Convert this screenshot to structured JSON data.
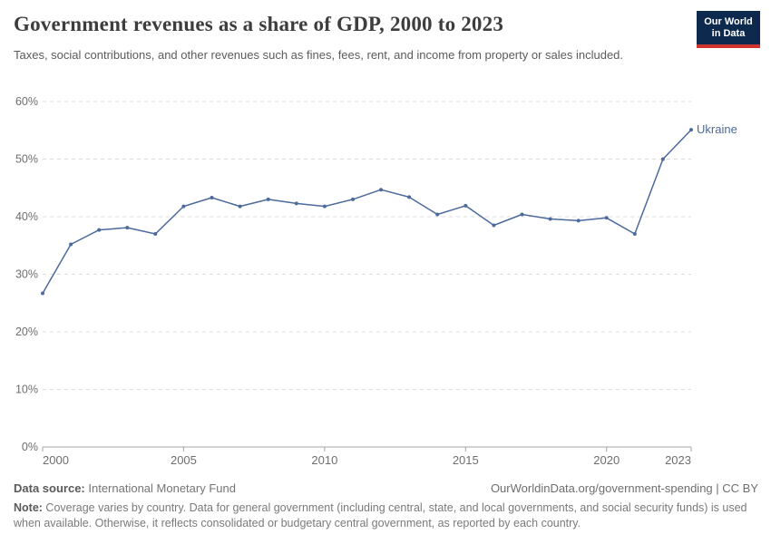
{
  "header": {
    "title": "Government revenues as a share of GDP, 2000 to 2023",
    "subtitle": "Taxes, social contributions, and other revenues such as fines, fees, rent, and income from property or sales included.",
    "logo": {
      "line1": "Our World",
      "line2": "in Data"
    }
  },
  "chart_data": {
    "type": "line",
    "title": "Government revenues as a share of GDP, 2000 to 2023",
    "x": [
      2000,
      2001,
      2002,
      2003,
      2004,
      2005,
      2006,
      2007,
      2008,
      2009,
      2010,
      2011,
      2012,
      2013,
      2014,
      2015,
      2016,
      2017,
      2018,
      2019,
      2020,
      2021,
      2022,
      2023
    ],
    "series": [
      {
        "name": "Ukraine",
        "color": "#4c6a9c",
        "values": [
          26.7,
          35.2,
          37.7,
          38.1,
          37.0,
          41.8,
          43.3,
          41.8,
          43.0,
          42.3,
          41.8,
          43.0,
          44.7,
          43.4,
          40.4,
          41.9,
          38.5,
          40.4,
          39.6,
          39.3,
          39.8,
          37.0,
          50.0,
          55.1
        ]
      }
    ],
    "xlabel": "",
    "ylabel": "",
    "ylim": [
      0,
      60
    ],
    "yticks": [
      0,
      10,
      20,
      30,
      40,
      50,
      60
    ],
    "ytick_suffix": "%",
    "xticks": [
      2000,
      2005,
      2010,
      2015,
      2020,
      2023
    ],
    "grid": "horizontal-dashed",
    "legend_position": "end-of-line-label",
    "end_label": "Ukraine"
  },
  "footer": {
    "datasource_label": "Data source:",
    "datasource_value": " International Monetary Fund",
    "link": "OurWorldinData.org/government-spending | CC BY",
    "note_label": "Note:",
    "note_text": " Coverage varies by country. Data for general government (including central, state, and local governments, and social security funds) is used when available. Otherwise, it reflects consolidated or budgetary central government, as reported by each country."
  },
  "colors": {
    "line": "#4c6a9c",
    "end_label": "#4c6a9c",
    "grid": "#dcdcdc",
    "axis": "#a5a5a5",
    "tick_text": "#6e6e6e",
    "logo_bg": "#0d2a4e",
    "logo_stripe": "#d0342c",
    "title_text": "#3d3d3d"
  }
}
